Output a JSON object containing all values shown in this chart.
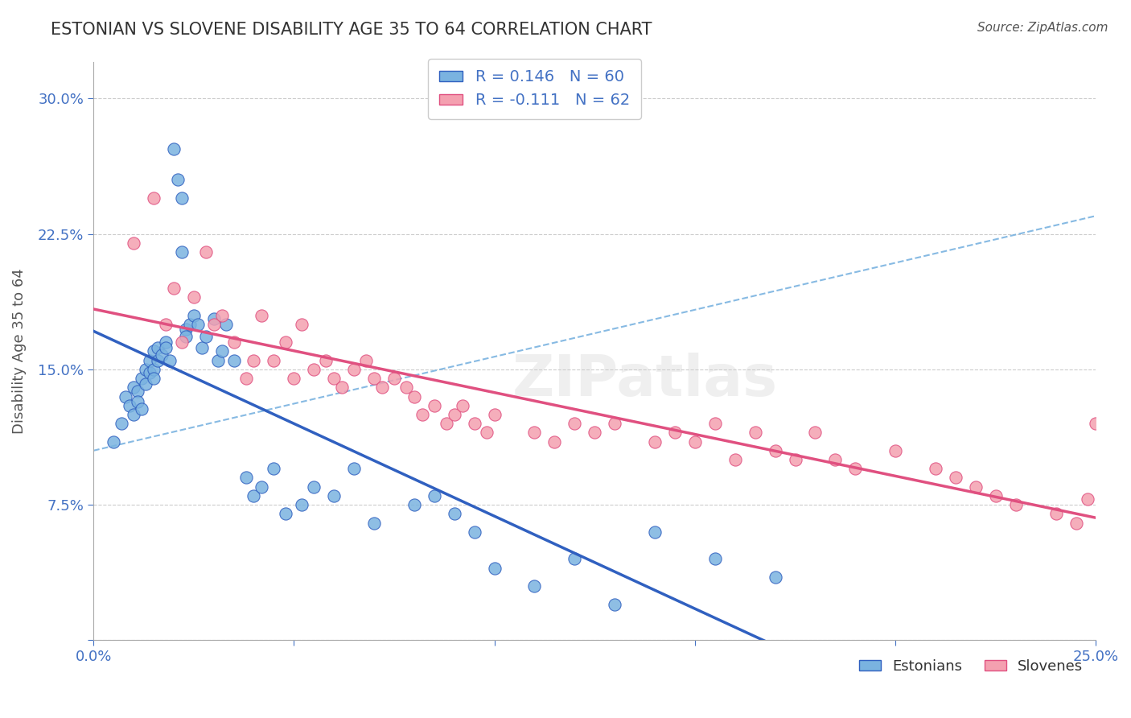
{
  "title": "ESTONIAN VS SLOVENE DISABILITY AGE 35 TO 64 CORRELATION CHART",
  "source": "Source: ZipAtlas.com",
  "ylabel": "Disability Age 35 to 64",
  "xlabel": "",
  "xlim": [
    0.0,
    0.25
  ],
  "ylim": [
    0.0,
    0.32
  ],
  "xticks": [
    0.0,
    0.05,
    0.1,
    0.15,
    0.2,
    0.25
  ],
  "xticklabels": [
    "0.0%",
    "",
    "",
    "",
    "",
    "25.0%"
  ],
  "yticks": [
    0.0,
    0.075,
    0.15,
    0.225,
    0.3
  ],
  "yticklabels": [
    "",
    "7.5%",
    "15.0%",
    "22.5%",
    "30.0%"
  ],
  "grid_color": "#cccccc",
  "background_color": "#ffffff",
  "title_color": "#333333",
  "axis_label_color": "#4472c4",
  "tick_color": "#4472c4",
  "R_estonian": 0.146,
  "N_estonian": 60,
  "R_slovene": -0.111,
  "N_slovene": 62,
  "legend_label_estonian": "Estonians",
  "legend_label_slovene": "Slovenes",
  "scatter_color_estonian": "#7ab3e0",
  "scatter_color_slovene": "#f4a0b0",
  "line_color_estonian": "#3060c0",
  "line_color_slovene": "#e05080",
  "line_color_dashed": "#7ab3e0",
  "watermark": "ZIPatlas",
  "estonian_x": [
    0.005,
    0.007,
    0.008,
    0.009,
    0.01,
    0.01,
    0.011,
    0.011,
    0.012,
    0.012,
    0.013,
    0.013,
    0.014,
    0.014,
    0.015,
    0.015,
    0.015,
    0.016,
    0.016,
    0.017,
    0.018,
    0.018,
    0.019,
    0.02,
    0.021,
    0.022,
    0.022,
    0.023,
    0.023,
    0.024,
    0.025,
    0.026,
    0.027,
    0.028,
    0.03,
    0.031,
    0.032,
    0.033,
    0.035,
    0.038,
    0.04,
    0.042,
    0.045,
    0.048,
    0.052,
    0.055,
    0.06,
    0.065,
    0.07,
    0.08,
    0.085,
    0.09,
    0.095,
    0.1,
    0.11,
    0.12,
    0.13,
    0.14,
    0.155,
    0.17
  ],
  "estonian_y": [
    0.11,
    0.12,
    0.135,
    0.13,
    0.125,
    0.14,
    0.138,
    0.132,
    0.128,
    0.145,
    0.15,
    0.142,
    0.148,
    0.155,
    0.15,
    0.145,
    0.16,
    0.155,
    0.162,
    0.158,
    0.165,
    0.162,
    0.155,
    0.272,
    0.255,
    0.245,
    0.215,
    0.172,
    0.168,
    0.175,
    0.18,
    0.175,
    0.162,
    0.168,
    0.178,
    0.155,
    0.16,
    0.175,
    0.155,
    0.09,
    0.08,
    0.085,
    0.095,
    0.07,
    0.075,
    0.085,
    0.08,
    0.095,
    0.065,
    0.075,
    0.08,
    0.07,
    0.06,
    0.04,
    0.03,
    0.045,
    0.02,
    0.06,
    0.045,
    0.035
  ],
  "slovene_x": [
    0.01,
    0.015,
    0.018,
    0.02,
    0.022,
    0.025,
    0.028,
    0.03,
    0.032,
    0.035,
    0.038,
    0.04,
    0.042,
    0.045,
    0.048,
    0.05,
    0.052,
    0.055,
    0.058,
    0.06,
    0.062,
    0.065,
    0.068,
    0.07,
    0.072,
    0.075,
    0.078,
    0.08,
    0.082,
    0.085,
    0.088,
    0.09,
    0.092,
    0.095,
    0.098,
    0.1,
    0.11,
    0.115,
    0.12,
    0.125,
    0.13,
    0.14,
    0.145,
    0.15,
    0.155,
    0.16,
    0.165,
    0.17,
    0.175,
    0.18,
    0.185,
    0.19,
    0.2,
    0.21,
    0.215,
    0.22,
    0.225,
    0.23,
    0.24,
    0.245,
    0.248,
    0.25
  ],
  "slovene_y": [
    0.22,
    0.245,
    0.175,
    0.195,
    0.165,
    0.19,
    0.215,
    0.175,
    0.18,
    0.165,
    0.145,
    0.155,
    0.18,
    0.155,
    0.165,
    0.145,
    0.175,
    0.15,
    0.155,
    0.145,
    0.14,
    0.15,
    0.155,
    0.145,
    0.14,
    0.145,
    0.14,
    0.135,
    0.125,
    0.13,
    0.12,
    0.125,
    0.13,
    0.12,
    0.115,
    0.125,
    0.115,
    0.11,
    0.12,
    0.115,
    0.12,
    0.11,
    0.115,
    0.11,
    0.12,
    0.1,
    0.115,
    0.105,
    0.1,
    0.115,
    0.1,
    0.095,
    0.105,
    0.095,
    0.09,
    0.085,
    0.08,
    0.075,
    0.07,
    0.065,
    0.078,
    0.12
  ]
}
